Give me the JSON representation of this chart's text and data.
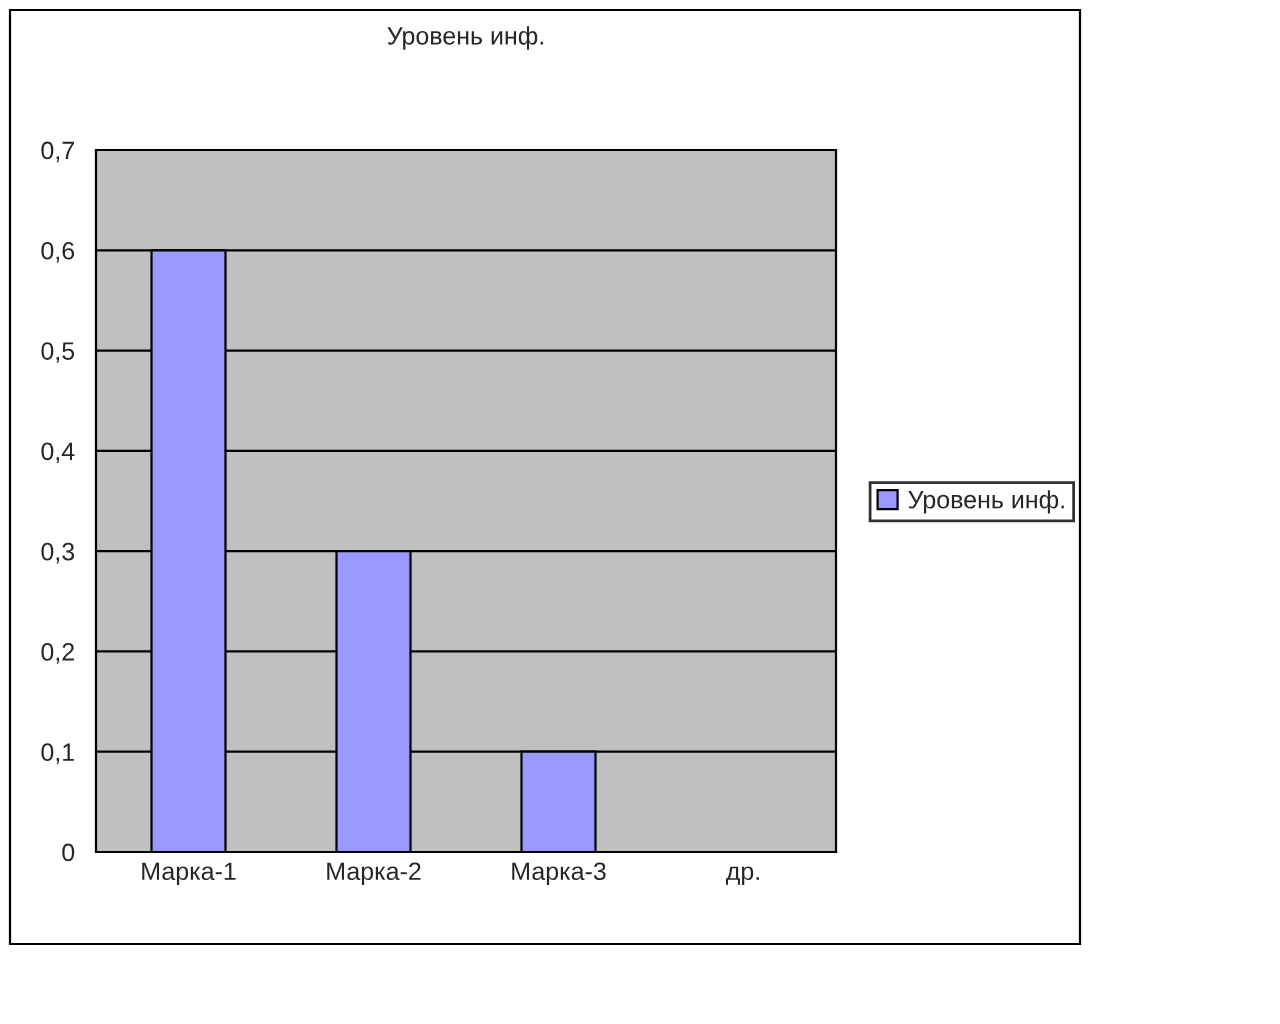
{
  "chart_data": {
    "type": "bar",
    "title": "Уровень инф.",
    "categories": [
      "Марка-1",
      "Марка-2",
      "Марка-3",
      "др."
    ],
    "series": [
      {
        "name": "Уровень инф.",
        "color": "#9999ff",
        "values": [
          0.6,
          0.3,
          0.1,
          0
        ]
      }
    ],
    "ylim": [
      0,
      0.7
    ],
    "yticks": [
      0,
      {
        "value": 0.1,
        "label": "0,1"
      },
      {
        "value": 0.2,
        "label": "0,2"
      },
      {
        "value": 0.3,
        "label": "0,3"
      },
      {
        "value": 0.4,
        "label": "0,4"
      },
      {
        "value": 0.5,
        "label": "0,5"
      },
      {
        "value": 0.6,
        "label": "0,6"
      },
      {
        "value": 0.7,
        "label": "0,7"
      }
    ],
    "grid": "y",
    "legend": "right"
  }
}
